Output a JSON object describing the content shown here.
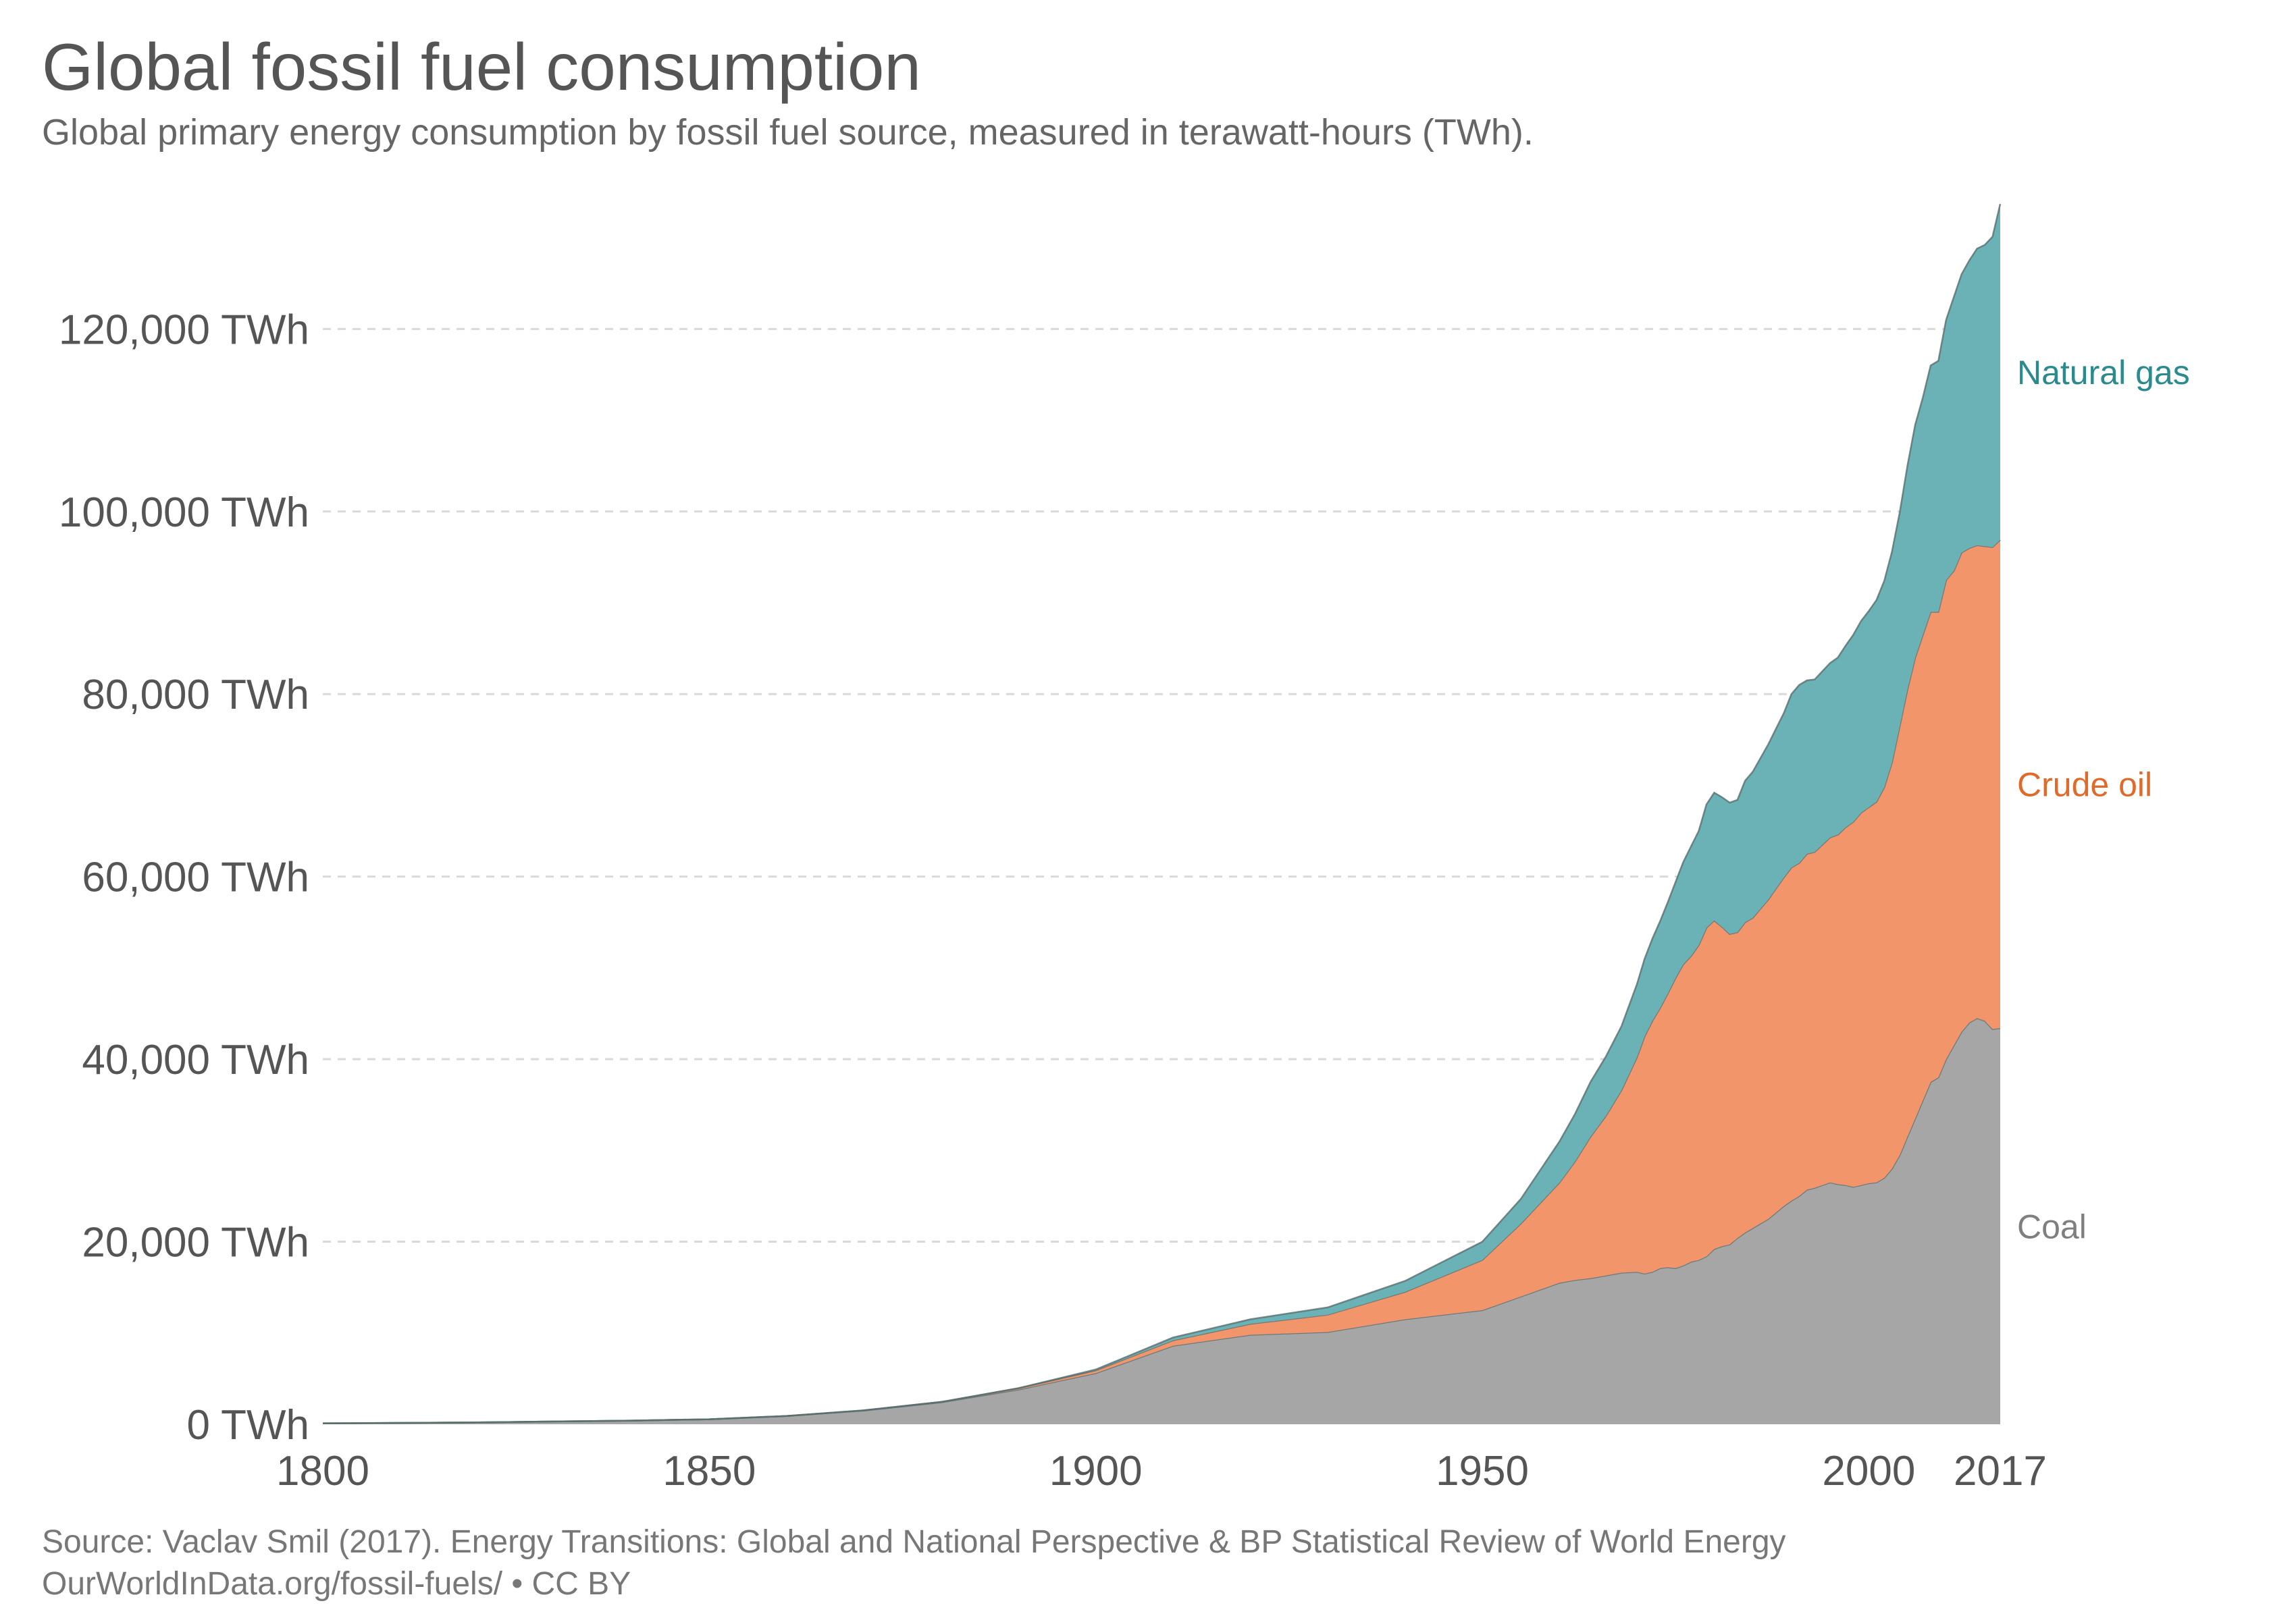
{
  "header": {
    "title": "Global fossil fuel consumption",
    "subtitle": "Global primary energy consumption by fossil fuel source, measured in terawatt-hours (TWh)."
  },
  "footer": {
    "source": "Source: Vaclav Smil (2017). Energy Transitions: Global and National Perspective & BP Statistical Review of World Energy",
    "license": "OurWorldInData.org/fossil-fuels/ • CC BY"
  },
  "colors": {
    "coal": "#a6a6a6",
    "oil": "#f2956b",
    "gas": "#6ab2b6",
    "coal_label": "#7f7f7f",
    "oil_label": "#e06a2a",
    "gas_label": "#2a8a8e",
    "grid": "#d9d9d9",
    "stroke": "#5a6e6e"
  },
  "chart_data": {
    "type": "area",
    "stacked": true,
    "x_ticks": [
      1800,
      1850,
      1900,
      1950,
      2000,
      2017
    ],
    "y_ticks": [
      0,
      20000,
      40000,
      60000,
      80000,
      100000,
      120000
    ],
    "y_tick_labels": [
      "0 TWh",
      "20,000 TWh",
      "40,000 TWh",
      "60,000 TWh",
      "80,000 TWh",
      "100,000 TWh",
      "120,000 TWh"
    ],
    "xlim": [
      1800,
      2017
    ],
    "ylim": [
      0,
      134000
    ],
    "grid": "horizontal-dashed",
    "legend": "right-inline",
    "x": [
      1800,
      1810,
      1820,
      1830,
      1840,
      1850,
      1860,
      1870,
      1880,
      1890,
      1900,
      1910,
      1920,
      1930,
      1940,
      1950,
      1955,
      1960,
      1962,
      1964,
      1966,
      1968,
      1970,
      1971,
      1972,
      1973,
      1974,
      1975,
      1976,
      1977,
      1978,
      1979,
      1980,
      1981,
      1982,
      1983,
      1984,
      1985,
      1986,
      1987,
      1988,
      1989,
      1990,
      1991,
      1992,
      1993,
      1994,
      1995,
      1996,
      1997,
      1998,
      1999,
      2000,
      2001,
      2002,
      2003,
      2004,
      2005,
      2006,
      2007,
      2008,
      2009,
      2010,
      2011,
      2012,
      2013,
      2014,
      2015,
      2016,
      2017
    ],
    "series": [
      {
        "name": "Coal",
        "values": [
          100,
          150,
          200,
          300,
          400,
          550,
          900,
          1500,
          2400,
          3800,
          5600,
          8600,
          9800,
          10100,
          11500,
          12500,
          14000,
          15500,
          15800,
          16000,
          16300,
          16600,
          16700,
          16500,
          16700,
          17100,
          17200,
          17100,
          17400,
          17800,
          18000,
          18400,
          19200,
          19500,
          19700,
          20400,
          21000,
          21500,
          22000,
          22500,
          23200,
          23900,
          24500,
          25000,
          25700,
          25900,
          26200,
          26500,
          26300,
          26200,
          26000,
          26200,
          26400,
          26500,
          27000,
          28000,
          29500,
          31500,
          33500,
          35500,
          37500,
          38000,
          40000,
          41500,
          43000,
          44000,
          44500,
          44200,
          43300,
          43400
        ]
      },
      {
        "name": "Crude oil",
        "values": [
          0,
          0,
          0,
          0,
          0,
          0,
          5,
          20,
          50,
          150,
          300,
          600,
          1200,
          1900,
          3000,
          5500,
          8000,
          11000,
          13000,
          15500,
          17500,
          20000,
          23500,
          26000,
          27500,
          28500,
          30000,
          31800,
          33000,
          33500,
          34500,
          36000,
          36000,
          35000,
          34000,
          33500,
          34000,
          34000,
          34500,
          35000,
          35500,
          36000,
          36500,
          36500,
          36800,
          36800,
          37300,
          37800,
          38300,
          39200,
          40000,
          40800,
          41200,
          41700,
          42800,
          44500,
          47000,
          49000,
          50500,
          51000,
          51500,
          51000,
          52500,
          52000,
          52500,
          52000,
          51800,
          52000,
          52800,
          53500
        ]
      },
      {
        "name": "Natural gas",
        "values": [
          0,
          0,
          0,
          0,
          0,
          0,
          0,
          0,
          0,
          0,
          100,
          300,
          500,
          800,
          1200,
          2000,
          2700,
          4500,
          5200,
          6000,
          6500,
          7000,
          8000,
          8500,
          9000,
          9500,
          10000,
          10500,
          11200,
          12000,
          12500,
          13500,
          14000,
          14200,
          14400,
          14500,
          15500,
          16000,
          16500,
          17000,
          17500,
          18000,
          19000,
          19500,
          19000,
          18900,
          19000,
          19100,
          19400,
          19900,
          20500,
          21000,
          21500,
          22100,
          22600,
          23100,
          23400,
          24500,
          25500,
          26000,
          27000,
          27500,
          28500,
          30000,
          30500,
          31500,
          32500,
          33000,
          34000,
          36800
        ]
      }
    ]
  }
}
